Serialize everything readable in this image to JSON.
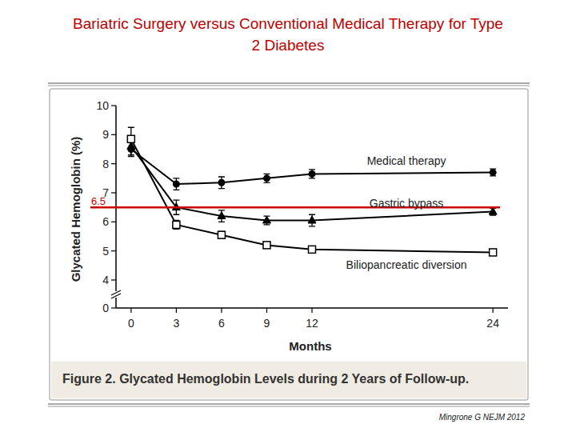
{
  "chart_data": {
    "type": "line",
    "title": "Bariatric Surgery versus Conventional Medical Therapy for Type 2 Diabetes",
    "x_label": "Months",
    "y_label": "Glycated Hemoglobin (%)",
    "caption": "Figure 2. Glycated Hemoglobin Levels during 2 Years of Follow-up.",
    "source": "Mingrone G NEJM 2012",
    "x": [
      0,
      3,
      6,
      9,
      12,
      24
    ],
    "xlim": [
      -1,
      25
    ],
    "xticks": [
      0,
      3,
      6,
      9,
      12,
      24
    ],
    "ylim": [
      0,
      10
    ],
    "yticks": [
      0,
      4,
      5,
      6,
      7,
      8,
      9,
      10
    ],
    "grid": false,
    "reference_line": {
      "value": 6.5,
      "label": "6.5",
      "color": "#cc0000"
    },
    "series": [
      {
        "name": "Medical therapy",
        "color": "#000000",
        "marker": "circle",
        "line_style": "solid",
        "values": [
          8.5,
          7.3,
          7.35,
          7.5,
          7.65,
          7.7
        ],
        "errors": [
          0.25,
          0.2,
          0.2,
          0.15,
          0.15,
          0.12
        ]
      },
      {
        "name": "Gastric bypass",
        "color": "#000000",
        "marker": "triangle",
        "line_style": "solid",
        "values": [
          8.6,
          6.5,
          6.2,
          6.05,
          6.05,
          6.35
        ],
        "errors": [
          0.3,
          0.25,
          0.2,
          0.15,
          0.2,
          0.12
        ]
      },
      {
        "name": "Biliopancreatic diversion",
        "color": "#000000",
        "marker": "open_square",
        "line_style": "solid",
        "values": [
          8.85,
          5.9,
          5.55,
          5.2,
          5.05,
          4.95
        ],
        "errors": [
          0.4,
          0.15,
          0.12,
          0.08,
          0.08,
          0.1
        ]
      }
    ]
  }
}
